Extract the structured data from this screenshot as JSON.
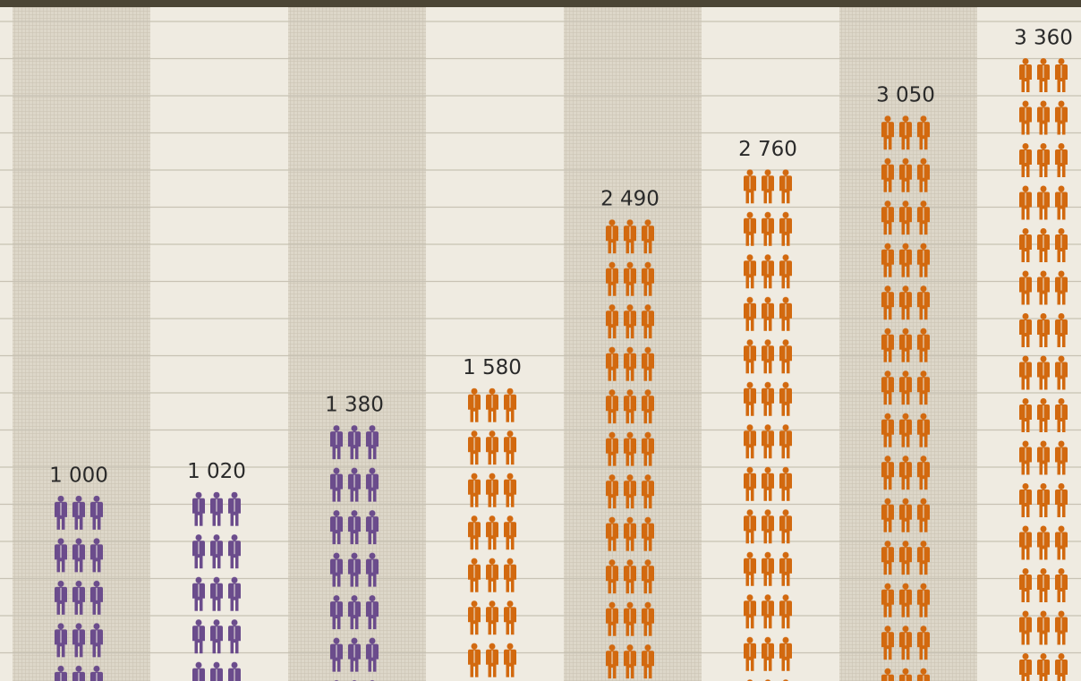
{
  "chart_data": {
    "type": "pictogram",
    "values": [
      1000,
      1020,
      1380,
      1580,
      2490,
      2760,
      3050,
      3360
    ],
    "value_labels": [
      "1 000",
      "1 020",
      "1 380",
      "1 580",
      "2 490",
      "2 760",
      "3 050",
      "3 360"
    ],
    "colors": [
      "#6b4c8c",
      "#6b4c8c",
      "#6b4c8c",
      "#d2690f",
      "#d2690f",
      "#d2690f",
      "#d2690f",
      "#d2690f"
    ]
  }
}
